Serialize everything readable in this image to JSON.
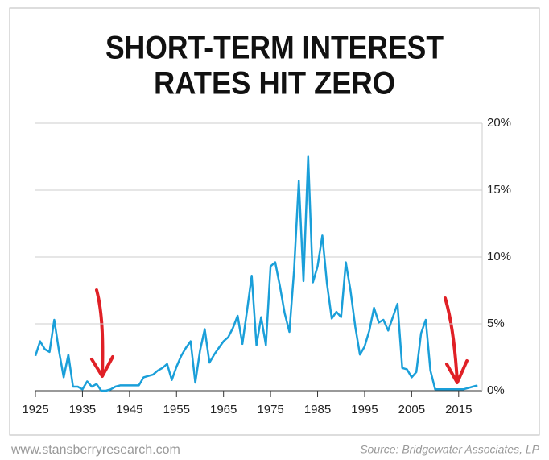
{
  "chart_data": {
    "type": "line",
    "title": [
      "SHORT-TERM INTEREST",
      "RATES HIT ZERO"
    ],
    "footer_left": "www.stansberryresearch.com",
    "source": "Source: Bridgewater Associates, LP",
    "x": [
      1925,
      1926,
      1927,
      1928,
      1929,
      1930,
      1931,
      1932,
      1933,
      1934,
      1935,
      1936,
      1937,
      1938,
      1939,
      1940,
      1941,
      1942,
      1943,
      1944,
      1945,
      1946,
      1947,
      1948,
      1949,
      1950,
      1951,
      1952,
      1953,
      1954,
      1955,
      1956,
      1957,
      1958,
      1959,
      1960,
      1961,
      1962,
      1963,
      1964,
      1965,
      1966,
      1967,
      1968,
      1969,
      1970,
      1971,
      1972,
      1973,
      1974,
      1975,
      1976,
      1977,
      1978,
      1979,
      1980,
      1981,
      1982,
      1983,
      1984,
      1985,
      1986,
      1987,
      1988,
      1989,
      1990,
      1991,
      1992,
      1993,
      1994,
      1995,
      1996,
      1997,
      1998,
      1999,
      2000,
      2001,
      2002,
      2003,
      2004,
      2005,
      2006,
      2007,
      2008,
      2009,
      2010,
      2011,
      2012,
      2013,
      2014,
      2015,
      2016,
      2017,
      2018,
      2019
    ],
    "series": [
      {
        "color": "#1a9fd9",
        "values": [
          2.6,
          3.7,
          3.1,
          2.9,
          5.3,
          3.0,
          1.0,
          2.7,
          0.3,
          0.3,
          0.1,
          0.7,
          0.3,
          0.5,
          0.0,
          0.0,
          0.1,
          0.3,
          0.4,
          0.4,
          0.4,
          0.4,
          0.4,
          1.0,
          1.1,
          1.2,
          1.5,
          1.7,
          2.0,
          0.8,
          1.8,
          2.6,
          3.2,
          3.7,
          0.6,
          3.0,
          4.6,
          2.1,
          2.7,
          3.2,
          3.7,
          4.0,
          4.7,
          5.6,
          3.5,
          6.0,
          8.6,
          3.4,
          5.5,
          3.4,
          9.3,
          9.6,
          7.8,
          5.8,
          4.4,
          9.0,
          15.7,
          8.2,
          17.5,
          8.1,
          9.3,
          11.6,
          8.0,
          5.4,
          5.9,
          5.5,
          9.6,
          7.5,
          4.8,
          2.7,
          3.3,
          4.5,
          6.2,
          5.1,
          5.3,
          4.5,
          5.5,
          6.5,
          1.7,
          1.6,
          1.0,
          1.4,
          4.3,
          5.3,
          1.5,
          0.1,
          0.1,
          0.1,
          0.1,
          0.1,
          0.1,
          0.1,
          0.2,
          0.3,
          0.4
        ]
      }
    ],
    "xlim": [
      1925,
      2020
    ],
    "xticks": [
      1925,
      1935,
      1945,
      1955,
      1965,
      1975,
      1985,
      1995,
      2005,
      2015
    ],
    "ylim": [
      0,
      20
    ],
    "yticks": [
      {
        "value": 0,
        "label": "0%"
      },
      {
        "value": 5,
        "label": "5%"
      },
      {
        "value": 10,
        "label": "10%"
      },
      {
        "value": 15,
        "label": "15%"
      },
      {
        "value": 20,
        "label": "20%"
      }
    ],
    "grid": true
  }
}
